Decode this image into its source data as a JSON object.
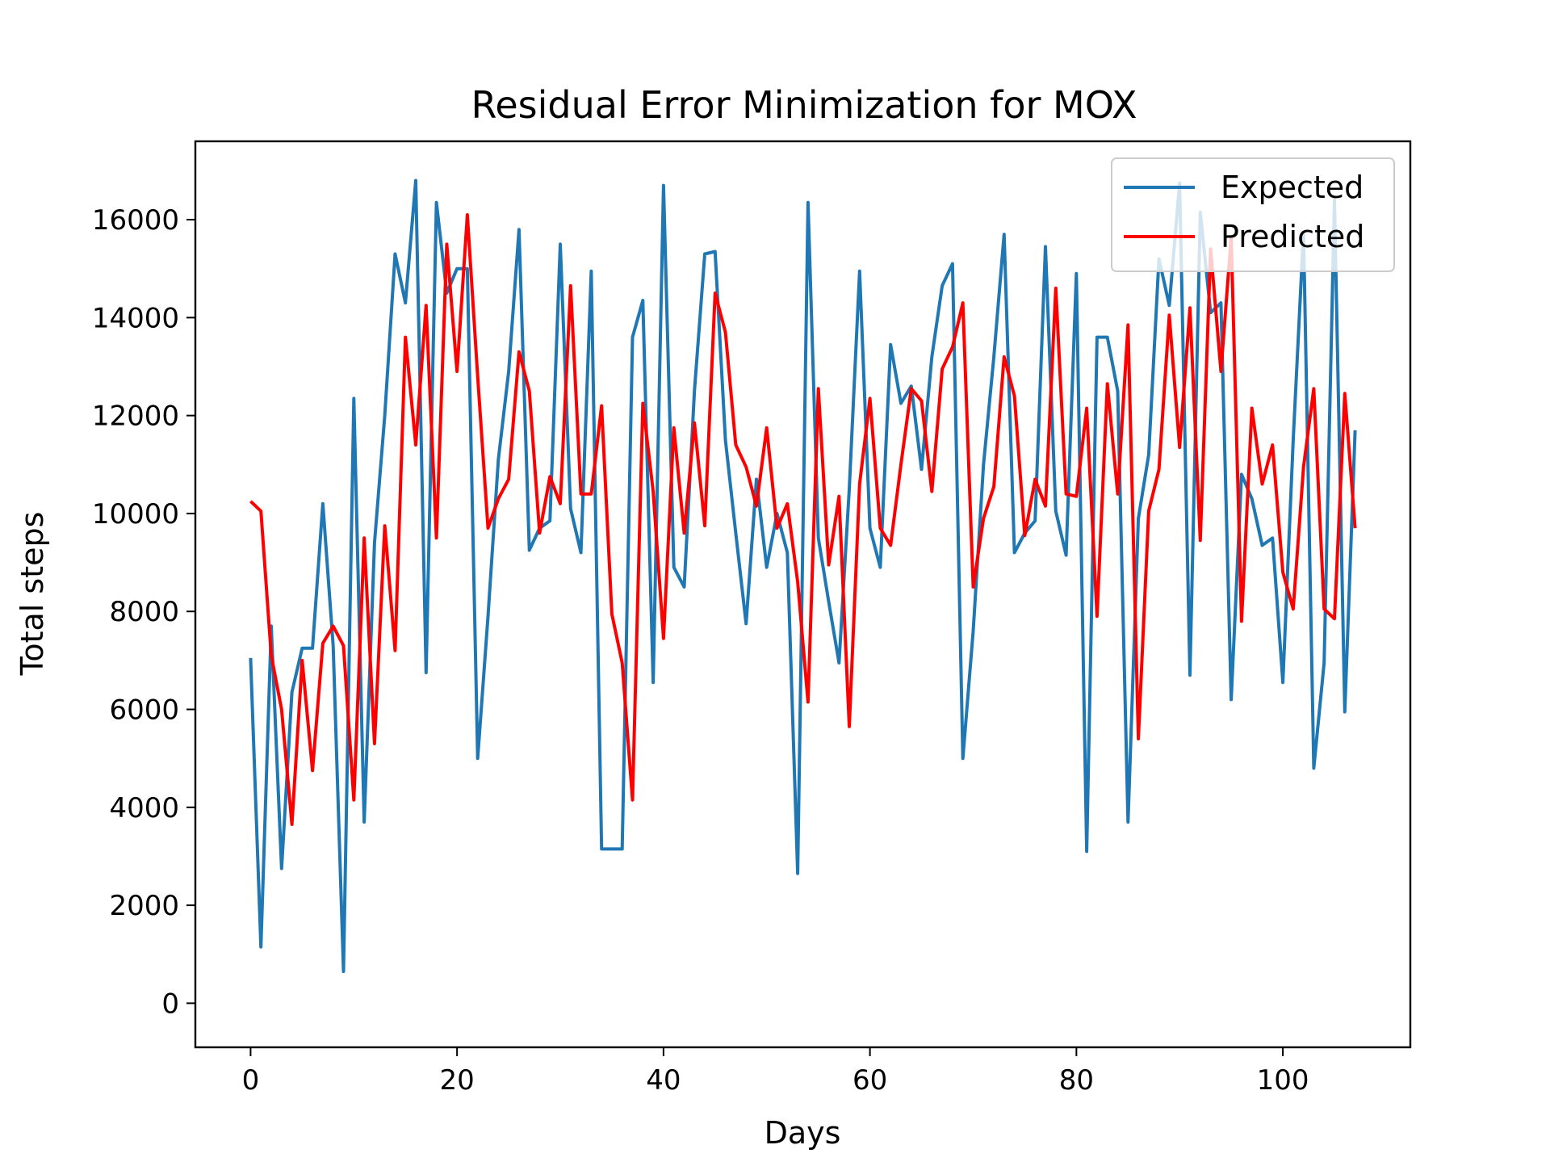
{
  "chart_data": {
    "type": "line",
    "title": "Residual Error Minimization for MOX",
    "xlabel": "Days",
    "ylabel": "Total steps",
    "xlim": [
      -5.35,
      112.35
    ],
    "ylim": [
      -900,
      17600
    ],
    "xticks": [
      0,
      20,
      40,
      60,
      80,
      100
    ],
    "yticks": [
      0,
      2000,
      4000,
      6000,
      8000,
      10000,
      12000,
      14000,
      16000
    ],
    "grid": false,
    "legend_position": "top-right",
    "x": [
      0,
      1,
      2,
      3,
      4,
      5,
      6,
      7,
      8,
      9,
      10,
      11,
      12,
      13,
      14,
      15,
      16,
      17,
      18,
      19,
      20,
      21,
      22,
      23,
      24,
      25,
      26,
      27,
      28,
      29,
      30,
      31,
      32,
      33,
      34,
      35,
      36,
      37,
      38,
      39,
      40,
      41,
      42,
      43,
      44,
      45,
      46,
      47,
      48,
      49,
      50,
      51,
      52,
      53,
      54,
      55,
      56,
      57,
      58,
      59,
      60,
      61,
      62,
      63,
      64,
      65,
      66,
      67,
      68,
      69,
      70,
      71,
      72,
      73,
      74,
      75,
      76,
      77,
      78,
      79,
      80,
      81,
      82,
      83,
      84,
      85,
      86,
      87,
      88,
      89,
      90,
      91,
      92,
      93,
      94,
      95,
      96,
      97,
      98,
      99,
      100,
      101,
      102,
      103,
      104,
      105,
      106,
      107
    ],
    "series": [
      {
        "name": "Expected",
        "color": "#1f77b4",
        "values": [
          7050,
          1150,
          7700,
          2750,
          6350,
          7250,
          7250,
          10200,
          7300,
          650,
          12350,
          3700,
          9400,
          12000,
          15300,
          14300,
          16800,
          6750,
          16350,
          14500,
          15000,
          15000,
          5000,
          7900,
          11100,
          12900,
          15800,
          9250,
          9700,
          9850,
          15500,
          10100,
          9200,
          14950,
          3150,
          3150,
          3150,
          13600,
          14350,
          6550,
          16700,
          8900,
          8500,
          12500,
          15300,
          15350,
          11500,
          9600,
          7750,
          10700,
          8900,
          10000,
          9200,
          2650,
          16350,
          9500,
          8200,
          6950,
          10500,
          14950,
          9700,
          8900,
          13450,
          12250,
          12600,
          10900,
          13200,
          14650,
          15100,
          5000,
          7600,
          11000,
          13200,
          15700,
          9200,
          9600,
          9850,
          15450,
          10050,
          9150,
          14900,
          3100,
          13600,
          13600,
          12500,
          3700,
          9900,
          11200,
          15200,
          14250,
          16750,
          6700,
          16150,
          14100,
          14300,
          6200,
          10800,
          10300,
          9350,
          9500,
          6550,
          11500,
          15750,
          4800,
          6950,
          16400,
          5950,
          11700
        ]
      },
      {
        "name": "Predicted",
        "color": "#ff0000",
        "values": [
          10250,
          10050,
          7100,
          6000,
          3650,
          7000,
          4750,
          7350,
          7700,
          7300,
          4150,
          9500,
          5300,
          9750,
          7200,
          13600,
          11400,
          14250,
          9500,
          15500,
          12900,
          16100,
          12800,
          9700,
          10300,
          10700,
          13300,
          12500,
          9600,
          10750,
          10200,
          14650,
          10400,
          10400,
          12200,
          7950,
          6950,
          4150,
          12250,
          10450,
          7450,
          11750,
          9600,
          11850,
          9750,
          14500,
          13700,
          11400,
          10950,
          10150,
          11750,
          9700,
          10200,
          8600,
          6150,
          12550,
          8950,
          10350,
          5650,
          10600,
          12350,
          9700,
          9350,
          11000,
          12550,
          12300,
          10450,
          12950,
          13400,
          14300,
          8500,
          9900,
          10550,
          13200,
          12400,
          9550,
          10700,
          10150,
          14600,
          10400,
          10350,
          12150,
          7900,
          12650,
          10400,
          13850,
          5400,
          10050,
          10900,
          14050,
          11350,
          14200,
          9450,
          15400,
          12900,
          15650,
          7800,
          12150,
          10600,
          11400,
          8800,
          8050,
          10950,
          12550,
          8050,
          7850,
          12450,
          9700
        ]
      }
    ]
  }
}
